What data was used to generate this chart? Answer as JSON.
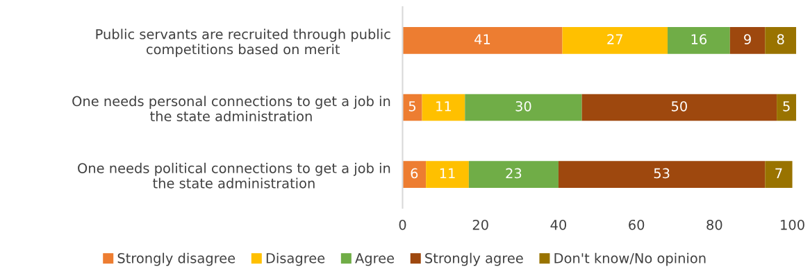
{
  "chart_data": {
    "type": "bar",
    "orientation": "horizontal",
    "stacked": true,
    "data_labels": true,
    "legend": "bottom",
    "grid": false,
    "categories": [
      "Public servants are recruited through public competitions based on merit",
      "One needs personal connections to get a job in the state administration",
      "One needs political connections to get a job in the state administration"
    ],
    "series": [
      {
        "name": "Strongly disagree",
        "color": "#ed7d31",
        "values": [
          41,
          5,
          6
        ]
      },
      {
        "name": "Disagree",
        "color": "#ffc000",
        "values": [
          27,
          11,
          11
        ]
      },
      {
        "name": "Agree",
        "color": "#70ad47",
        "values": [
          16,
          30,
          23
        ]
      },
      {
        "name": "Strongly agree",
        "color": "#9e480e",
        "values": [
          9,
          50,
          53
        ]
      },
      {
        "name": "Don't know/No opinion",
        "color": "#997300",
        "values": [
          8,
          5,
          7
        ]
      }
    ],
    "xlim": [
      0,
      101
    ],
    "xticks": [
      0,
      20,
      40,
      60,
      80,
      100
    ]
  }
}
